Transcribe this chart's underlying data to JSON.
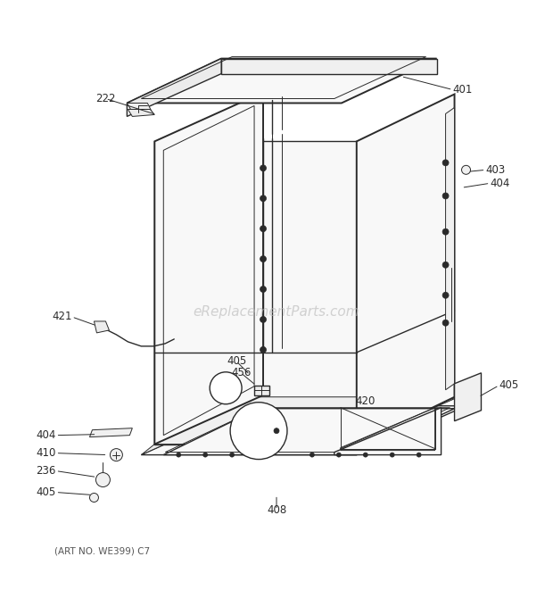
{
  "bg_color": "#ffffff",
  "line_color": "#2a2a2a",
  "text_color": "#2a2a2a",
  "watermark_color": "#bbbbbb",
  "watermark_text": "eReplacementParts.com",
  "footer_text": "(ART NO. WE399) C7",
  "figsize": [
    6.2,
    6.61
  ],
  "dpi": 100,
  "face_color": "#f8f8f8",
  "face_color2": "#f0f0f0",
  "face_color3": "#ececec"
}
